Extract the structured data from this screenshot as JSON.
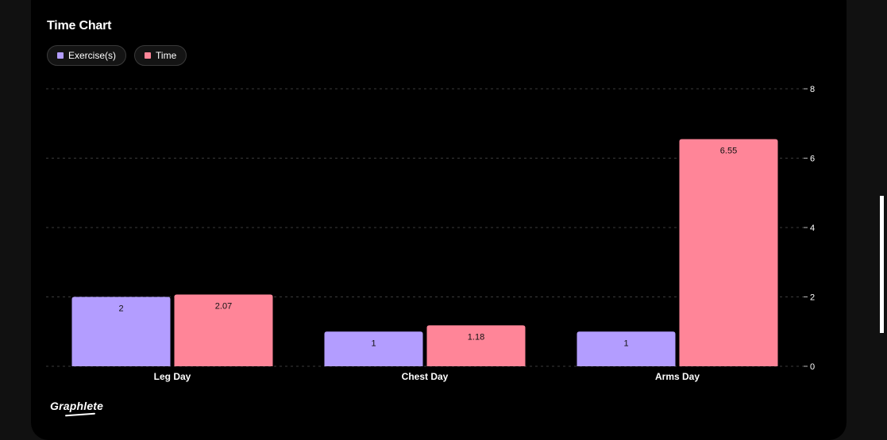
{
  "title": "Time Chart",
  "legend": [
    {
      "label": "Exercise(s)",
      "color": "#b39dff"
    },
    {
      "label": "Time",
      "color": "#ff8598"
    }
  ],
  "brand": "Graphlete",
  "chart_data": {
    "type": "bar",
    "title": "Time Chart",
    "categories": [
      "Leg Day",
      "Chest Day",
      "Arms Day"
    ],
    "series": [
      {
        "name": "Exercise(s)",
        "color": "#b39dff",
        "values": [
          2,
          1,
          1
        ],
        "labels": [
          "2",
          "1",
          "1"
        ]
      },
      {
        "name": "Time",
        "color": "#ff8598",
        "values": [
          2.07,
          1.18,
          6.55
        ],
        "labels": [
          "2.07",
          "1.18",
          "6.55"
        ]
      }
    ],
    "ylim": [
      0,
      8
    ],
    "yticks": [
      0,
      2,
      4,
      6,
      8
    ],
    "y_axis_side": "right",
    "grid": true,
    "legend_position": "top-left"
  }
}
